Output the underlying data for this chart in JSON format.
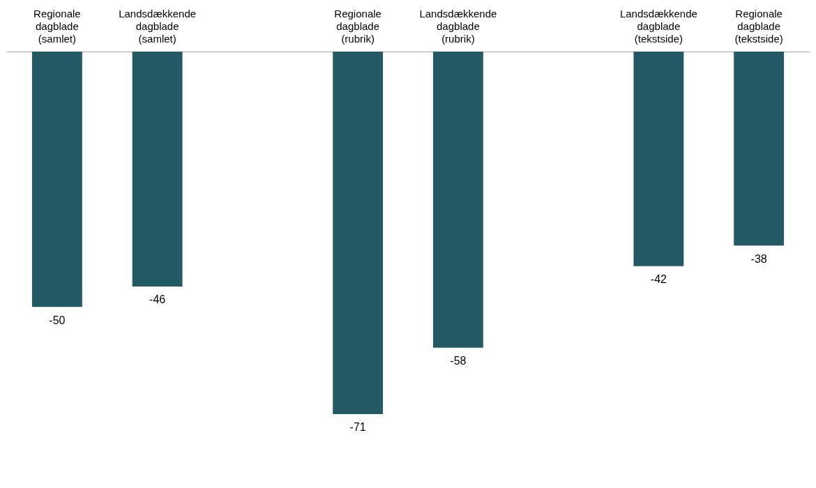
{
  "chart_data": {
    "type": "bar",
    "categories": [
      "Regionale dagblade (samlet)",
      "Landsdækkende dagblade (samlet)",
      null,
      "Regionale dagblade (rubrik)",
      "Landsdækkende dagblade (rubrik)",
      null,
      "Landsdækkende dagblade (tekstside)",
      "Regionale dagblade (tekstside)"
    ],
    "values": [
      -50,
      -46,
      null,
      -71,
      -58,
      null,
      -42,
      -38
    ],
    "color": "#235a66",
    "data_labels": true,
    "grid": false,
    "legend": false
  }
}
